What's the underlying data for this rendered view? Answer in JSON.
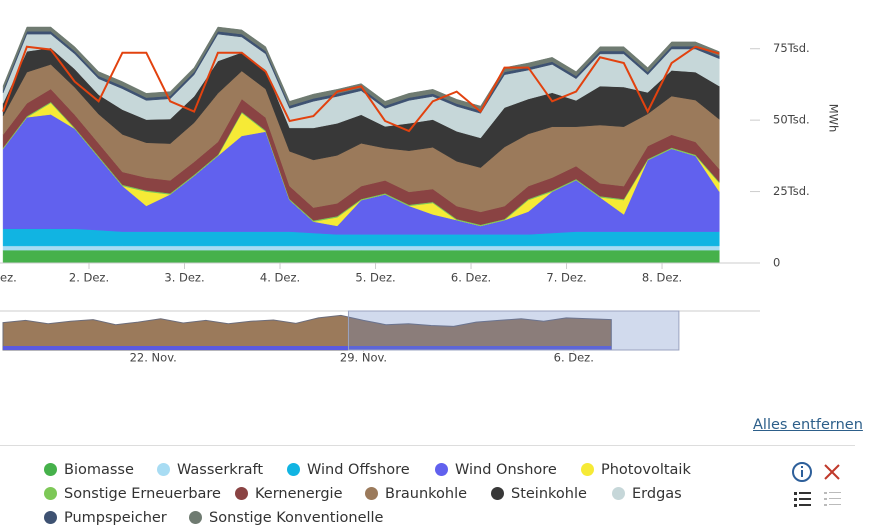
{
  "chart_data": {
    "type": "stacked_area",
    "y_axis_label": "MWh",
    "x": [
      0.1,
      0.35,
      0.6,
      0.85,
      1.1,
      1.35,
      1.6,
      1.85,
      2.1,
      2.35,
      2.6,
      2.85,
      3.1,
      3.35,
      3.6,
      3.85,
      4.1,
      4.35,
      4.6,
      4.85,
      5.1,
      5.35,
      5.6,
      5.85,
      6.1,
      6.35,
      6.6,
      6.85,
      7.1,
      7.35,
      7.6
    ],
    "xlim": [
      0.068,
      7.921
    ],
    "xticks": [
      {
        "value": 0,
        "label": "ez."
      },
      {
        "value": 1,
        "label": "2. Dez."
      },
      {
        "value": 2,
        "label": "3. Dez."
      },
      {
        "value": 3,
        "label": "4. Dez."
      },
      {
        "value": 4,
        "label": "5. Dez."
      },
      {
        "value": 5,
        "label": "6. Dez."
      },
      {
        "value": 6,
        "label": "7. Dez."
      },
      {
        "value": 7,
        "label": "8. Dez."
      }
    ],
    "ylim": [
      0,
      91000
    ],
    "yticks": [
      0,
      {
        "value": 25000,
        "label": "25Tsd."
      },
      {
        "value": 50000,
        "label": "50Tsd."
      },
      {
        "value": 75000,
        "label": "75Tsd."
      }
    ],
    "series": [
      {
        "name": "Biomasse",
        "color": "#46b14b",
        "values": [
          4500,
          4500,
          4500,
          4500,
          4500,
          4500,
          4500,
          4500,
          4500,
          4500,
          4500,
          4500,
          4500,
          4500,
          4500,
          4500,
          4500,
          4500,
          4500,
          4500,
          4500,
          4500,
          4500,
          4500,
          4500,
          4500,
          4500,
          4500,
          4500,
          4500,
          4500
        ]
      },
      {
        "name": "Wasserkraft",
        "color": "#a8dcf3",
        "values": [
          1500,
          1500,
          1500,
          1500,
          1500,
          1500,
          1500,
          1500,
          1500,
          1500,
          1500,
          1500,
          1500,
          1500,
          1500,
          1500,
          1500,
          1500,
          1500,
          1500,
          1500,
          1500,
          1500,
          1500,
          1500,
          1500,
          1500,
          1500,
          1500,
          1500,
          1500
        ]
      },
      {
        "name": "Wind Offshore",
        "color": "#11b4e2",
        "values": [
          6000,
          6000,
          6000,
          6000,
          5500,
          5000,
          5000,
          5000,
          5000,
          5000,
          5000,
          5000,
          5000,
          4500,
          4000,
          4000,
          4000,
          4000,
          4000,
          4000,
          4000,
          4000,
          4000,
          4500,
          5000,
          5000,
          5000,
          5000,
          5000,
          5000,
          5000
        ]
      },
      {
        "name": "Wind Onshore",
        "color": "#6161ee",
        "values": [
          28000,
          39000,
          40000,
          35000,
          25500,
          16000,
          9000,
          13000,
          19500,
          26500,
          33500,
          35000,
          11000,
          4000,
          3000,
          12000,
          14000,
          10000,
          7000,
          5000,
          3000,
          5000,
          8000,
          14500,
          18000,
          12000,
          6000,
          25000,
          29000,
          26500,
          14000
        ]
      },
      {
        "name": "Photovoltaik",
        "color": "#f6ea36",
        "values": [
          0,
          0,
          4000,
          0,
          0,
          0,
          5000,
          0,
          0,
          0,
          8000,
          0,
          0,
          0,
          3000,
          0,
          0,
          0,
          4000,
          0,
          0,
          0,
          4000,
          0,
          0,
          0,
          5000,
          0,
          0,
          0,
          3000
        ]
      },
      {
        "name": "Sonstige Erneuerbare",
        "color": "#7dc857",
        "values": [
          400,
          400,
          400,
          400,
          400,
          400,
          400,
          400,
          400,
          400,
          400,
          400,
          400,
          400,
          400,
          400,
          400,
          400,
          400,
          400,
          400,
          400,
          400,
          400,
          400,
          400,
          400,
          400,
          400,
          400,
          400
        ]
      },
      {
        "name": "Kernenergie",
        "color": "#8a4343",
        "values": [
          4500,
          4500,
          4500,
          4500,
          4500,
          4500,
          4500,
          4500,
          4500,
          4500,
          4500,
          4500,
          4500,
          4500,
          4500,
          4500,
          4500,
          4500,
          4500,
          4500,
          4500,
          4500,
          4500,
          4500,
          4500,
          4500,
          4500,
          4500,
          4500,
          4500,
          4500
        ]
      },
      {
        "name": "Braunkohle",
        "color": "#9b7a5b",
        "values": [
          6600,
          10900,
          8600,
          9600,
          10200,
          13100,
          12200,
          12900,
          13700,
          17000,
          9800,
          10000,
          12200,
          16700,
          16800,
          15000,
          11300,
          14400,
          14600,
          15700,
          15500,
          20700,
          18300,
          17800,
          13800,
          20400,
          20800,
          11300,
          13500,
          14600,
          17400
        ]
      },
      {
        "name": "Steinkohle",
        "color": "#383838",
        "values": [
          4400,
          7300,
          5800,
          6400,
          6800,
          8700,
          8100,
          8600,
          9200,
          11300,
          6500,
          6700,
          8200,
          11200,
          11200,
          10000,
          7600,
          9600,
          9700,
          10500,
          10400,
          13800,
          12200,
          11900,
          9200,
          13600,
          13900,
          7500,
          9000,
          9800,
          11600
        ]
      },
      {
        "name": "Erdgas",
        "color": "#c6d7d9",
        "values": [
          3600,
          6000,
          4800,
          5300,
          5600,
          7300,
          6700,
          7100,
          7600,
          9400,
          5400,
          5600,
          6800,
          9300,
          9400,
          8400,
          6300,
          8000,
          8100,
          8700,
          8600,
          11500,
          10100,
          9900,
          7600,
          11300,
          11600,
          6200,
          7500,
          8100,
          9600
        ]
      },
      {
        "name": "Pumpspeicher",
        "color": "#3e5272",
        "values": [
          1000,
          1000,
          1000,
          1000,
          1000,
          1000,
          1000,
          1000,
          1000,
          1000,
          1000,
          1000,
          1000,
          1000,
          1000,
          1000,
          1000,
          1000,
          1000,
          1000,
          1000,
          1000,
          1000,
          1000,
          1000,
          1000,
          1000,
          1000,
          1000,
          1000,
          1000
        ]
      },
      {
        "name": "Sonstige Konventionelle",
        "color": "#6f7b71",
        "values": [
          1500,
          1500,
          1500,
          1500,
          1500,
          1500,
          1500,
          1500,
          1500,
          1500,
          1500,
          1500,
          1500,
          1500,
          1500,
          1500,
          1500,
          1500,
          1500,
          1500,
          1500,
          1500,
          1500,
          1500,
          1500,
          1500,
          1500,
          1500,
          1500,
          1500,
          1500
        ]
      }
    ],
    "line": {
      "color": "#e2420f",
      "values": [
        53000,
        75700,
        74700,
        63500,
        56600,
        73600,
        73600,
        56600,
        53000,
        73600,
        73600,
        67000,
        49700,
        51400,
        60000,
        61800,
        49700,
        46200,
        56600,
        60000,
        53000,
        68400,
        68400,
        56600,
        60000,
        72000,
        70000,
        53000,
        70000,
        75700,
        73300
      ]
    },
    "navigator": {
      "x": [
        -5,
        -4.25,
        -3.5,
        -2.75,
        -2,
        -1.25,
        -0.5,
        0.25,
        1,
        1.75,
        2.5,
        3.25,
        4,
        4.75,
        5.5,
        6.25,
        7,
        7.75,
        8.5,
        9.25,
        10,
        10.75,
        11.5,
        12.25,
        13,
        13.75,
        14.5,
        15.25
      ],
      "values": [
        65000,
        70000,
        62000,
        68000,
        72000,
        60000,
        66000,
        74000,
        64000,
        70000,
        62000,
        68000,
        71000,
        63000,
        76000,
        82000,
        70000,
        60000,
        62000,
        58000,
        56000,
        66000,
        70000,
        74000,
        68000,
        76000,
        74000,
        72000
      ],
      "color": "#9b7a5b",
      "xlim": [
        -5.1,
        20.2
      ],
      "ylim": [
        0,
        90000
      ],
      "xticks": [
        {
          "value": 0,
          "label": "22. Nov."
        },
        {
          "value": 7,
          "label": "29. Nov."
        },
        {
          "value": 14,
          "label": "6. Dez."
        }
      ],
      "selection": [
        6.5,
        17.5
      ]
    },
    "clear_link": "Alles entfernen"
  }
}
